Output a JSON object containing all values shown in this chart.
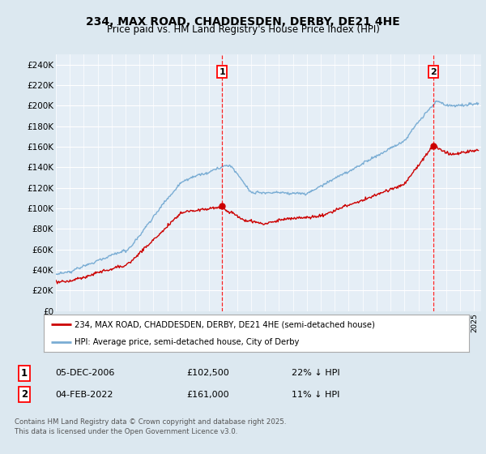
{
  "title": "234, MAX ROAD, CHADDESDEN, DERBY, DE21 4HE",
  "subtitle": "Price paid vs. HM Land Registry's House Price Index (HPI)",
  "ylim": [
    0,
    250000
  ],
  "xlim_start": 1995,
  "xlim_end": 2025.5,
  "bg_color": "#dce8f0",
  "plot_bg": "#e5eef6",
  "grid_color": "#ffffff",
  "red_color": "#cc0000",
  "blue_color": "#7aadd4",
  "marker1_x": 2006.92,
  "marker1_y": 102500,
  "marker2_x": 2022.08,
  "marker2_y": 161000,
  "legend_label_red": "234, MAX ROAD, CHADDESDEN, DERBY, DE21 4HE (semi-detached house)",
  "legend_label_blue": "HPI: Average price, semi-detached house, City of Derby",
  "sale1_date": "05-DEC-2006",
  "sale1_price": "£102,500",
  "sale1_hpi": "22% ↓ HPI",
  "sale2_date": "04-FEB-2022",
  "sale2_price": "£161,000",
  "sale2_hpi": "11% ↓ HPI",
  "footer": "Contains HM Land Registry data © Crown copyright and database right 2025.\nThis data is licensed under the Open Government Licence v3.0."
}
